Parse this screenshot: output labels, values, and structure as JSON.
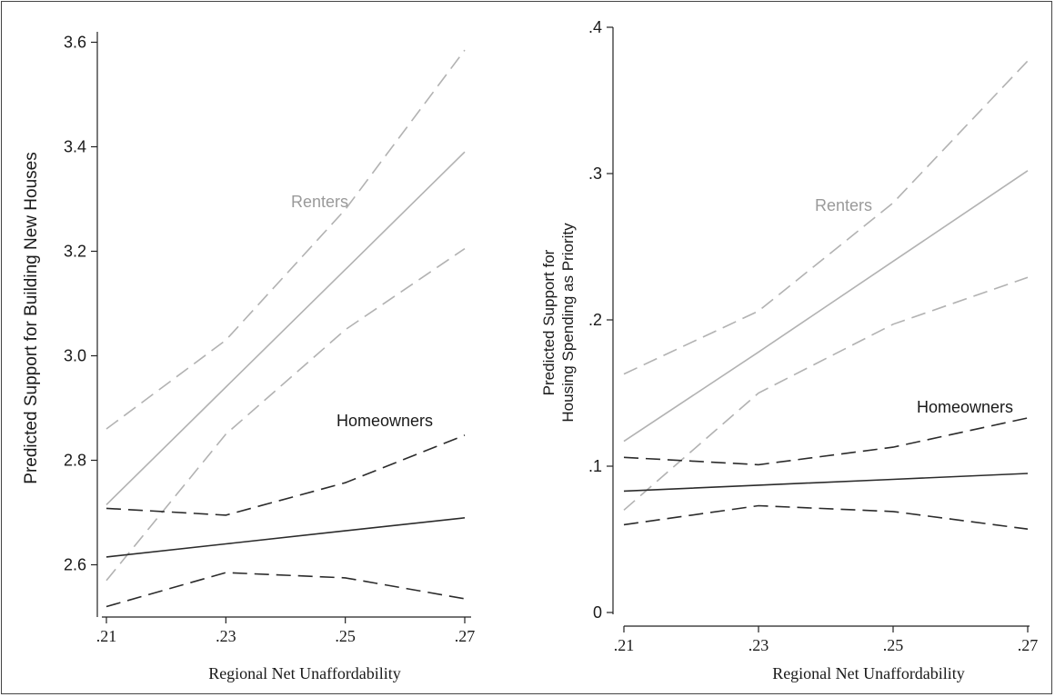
{
  "figure": {
    "colors": {
      "homeowners": "#2b2b2b",
      "renters": "#b2b2b2",
      "axis": "#222222"
    }
  },
  "chart_data": [
    {
      "type": "line",
      "title": "",
      "xlabel": "Regional Net Unaffordability",
      "ylabel": "Predicted Support for Building New Houses",
      "xlim": [
        0.21,
        0.27
      ],
      "ylim": [
        2.5,
        3.62
      ],
      "x": [
        0.21,
        0.23,
        0.25,
        0.27
      ],
      "x_tick_labels": [
        ".21",
        ".23",
        ".25",
        ".27"
      ],
      "y_ticks": [
        2.6,
        2.8,
        3.0,
        3.2,
        3.4,
        3.6
      ],
      "y_tick_labels": [
        "2.6",
        "2.8",
        "3.0",
        "3.2",
        "3.4",
        "3.6"
      ],
      "grid": false,
      "annotations": [
        "Renters",
        "Homeowners"
      ],
      "series": [
        {
          "name": "Renters",
          "style": "solid",
          "color": "renters",
          "values": [
            2.715,
            2.94,
            3.165,
            3.39
          ]
        },
        {
          "name": "Renters",
          "style": "dashed",
          "color": "renters",
          "values": [
            2.86,
            3.03,
            3.28,
            3.585
          ]
        },
        {
          "name": "Renters",
          "style": "dashed",
          "color": "renters",
          "values": [
            2.57,
            2.85,
            3.05,
            3.205
          ]
        },
        {
          "name": "Homeowners",
          "style": "solid",
          "color": "homeowners",
          "values": [
            2.615,
            2.64,
            2.665,
            2.69
          ]
        },
        {
          "name": "Homeowners",
          "style": "dashed",
          "color": "homeowners",
          "values": [
            2.708,
            2.695,
            2.757,
            2.848
          ]
        },
        {
          "name": "Homeowners",
          "style": "dashed",
          "color": "homeowners",
          "values": [
            2.52,
            2.585,
            2.575,
            2.535
          ]
        }
      ]
    },
    {
      "type": "line",
      "title": "",
      "xlabel": "Regional Net Unaffordability",
      "ylabel_lines": [
        "Predicted Support for",
        "Housing Spending as Priority"
      ],
      "xlim": [
        0.21,
        0.27
      ],
      "ylim": [
        0,
        0.4
      ],
      "x": [
        0.21,
        0.23,
        0.25,
        0.27
      ],
      "x_tick_labels": [
        ".21",
        ".23",
        ".25",
        ".27"
      ],
      "y_ticks": [
        0,
        0.1,
        0.2,
        0.3,
        0.4
      ],
      "y_tick_labels": [
        "0",
        ".1",
        ".2",
        ".3",
        ".4"
      ],
      "grid": false,
      "annotations": [
        "Renters",
        "Homeowners"
      ],
      "series": [
        {
          "name": "Renters",
          "style": "solid",
          "color": "renters",
          "values": [
            0.117,
            0.178,
            0.24,
            0.302
          ]
        },
        {
          "name": "Renters",
          "style": "dashed",
          "color": "renters",
          "values": [
            0.163,
            0.206,
            0.28,
            0.377
          ]
        },
        {
          "name": "Renters",
          "style": "dashed",
          "color": "renters",
          "values": [
            0.07,
            0.15,
            0.197,
            0.229
          ]
        },
        {
          "name": "Homeowners",
          "style": "solid",
          "color": "homeowners",
          "values": [
            0.083,
            0.087,
            0.091,
            0.095
          ]
        },
        {
          "name": "Homeowners",
          "style": "dashed",
          "color": "homeowners",
          "values": [
            0.106,
            0.101,
            0.113,
            0.133
          ]
        },
        {
          "name": "Homeowners",
          "style": "dashed",
          "color": "homeowners",
          "values": [
            0.06,
            0.073,
            0.069,
            0.057
          ]
        }
      ]
    }
  ]
}
